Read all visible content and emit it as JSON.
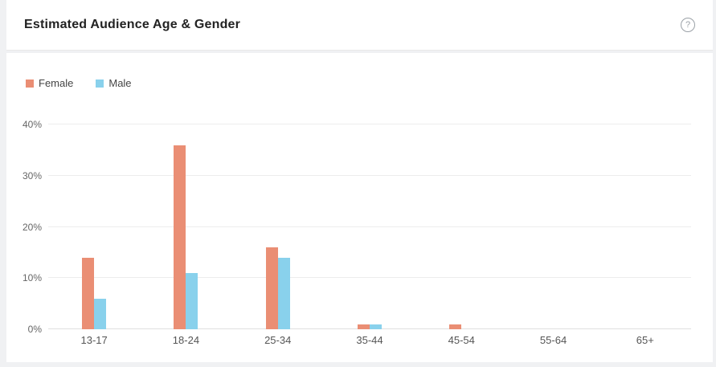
{
  "page_background": "#f0f1f3",
  "header": {
    "title": "Estimated Audience Age & Gender",
    "help_icon_glyph": "?"
  },
  "chart_data": {
    "type": "bar",
    "title": "Estimated Audience Age & Gender",
    "categories": [
      "13-17",
      "18-24",
      "25-34",
      "35-44",
      "45-54",
      "55-64",
      "65+"
    ],
    "series": [
      {
        "name": "Female",
        "color": "#EA8E74",
        "values": [
          14,
          36,
          16,
          1,
          1,
          0,
          0
        ]
      },
      {
        "name": "Male",
        "color": "#89D1EC",
        "values": [
          6,
          11,
          14,
          1,
          0,
          0,
          0
        ]
      }
    ],
    "xlabel": "",
    "ylabel": "",
    "ylim": [
      0,
      40
    ],
    "y_tick_values": [
      0,
      10,
      20,
      30,
      40
    ],
    "y_tick_labels": [
      "0%",
      "10%",
      "20%",
      "30%",
      "40%"
    ],
    "unit": "percent",
    "grid": true,
    "legend_position": "top-left"
  },
  "colors": {
    "female_bar": "#EA8E74",
    "male_bar": "#89D1EC",
    "grid_line": "#ededed",
    "axis_line": "#e0e0e0",
    "tick_text": "#666666",
    "title_text": "#222222",
    "help_icon": "#9aa0a6"
  }
}
